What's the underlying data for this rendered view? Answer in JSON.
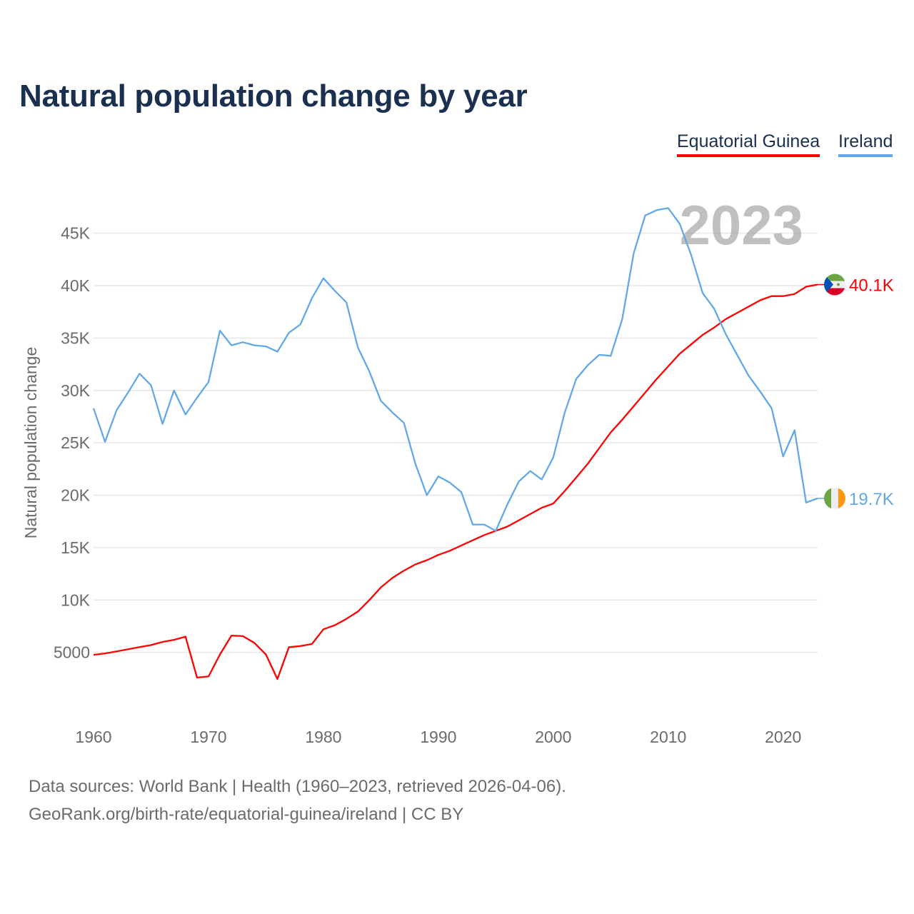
{
  "title": "Natural population change by year",
  "legend": [
    {
      "label": "Equatorial Guinea",
      "color": "#ff0000"
    },
    {
      "label": "Ireland",
      "color": "#62a8e8"
    }
  ],
  "year_display": "2023",
  "footer": {
    "line1": "Data sources: World Bank | Health (1960–2023, retrieved 2026-04-06).",
    "line2": "GeoRank.org/birth-rate/equatorial-guinea/ireland | CC BY"
  },
  "chart_data": {
    "type": "line",
    "title": "Natural population change by year",
    "xlabel": "",
    "ylabel": "Natural population change",
    "xlim": [
      1960,
      2023
    ],
    "ylim": [
      0,
      47.5
    ],
    "y_unit": "thousands",
    "grid": true,
    "legend_position": "top-right",
    "x_ticks": [
      "1960",
      "1970",
      "1980",
      "1990",
      "2000",
      "2010",
      "2020"
    ],
    "x_tick_values": [
      1960,
      1970,
      1980,
      1990,
      2000,
      2010,
      2020
    ],
    "y_ticks": [
      "5000",
      "10K",
      "15K",
      "20K",
      "25K",
      "30K",
      "35K",
      "40K",
      "45K"
    ],
    "y_tick_values": [
      5,
      10,
      15,
      20,
      25,
      30,
      35,
      40,
      45
    ],
    "x": [
      1960,
      1961,
      1962,
      1963,
      1964,
      1965,
      1966,
      1967,
      1968,
      1969,
      1970,
      1971,
      1972,
      1973,
      1974,
      1975,
      1976,
      1977,
      1978,
      1979,
      1980,
      1981,
      1982,
      1983,
      1984,
      1985,
      1986,
      1987,
      1988,
      1989,
      1990,
      1991,
      1992,
      1993,
      1994,
      1995,
      1996,
      1997,
      1998,
      1999,
      2000,
      2001,
      2002,
      2003,
      2004,
      2005,
      2006,
      2007,
      2008,
      2009,
      2010,
      2011,
      2012,
      2013,
      2014,
      2015,
      2016,
      2017,
      2018,
      2019,
      2020,
      2021,
      2022,
      2023
    ],
    "series": [
      {
        "name": "Equatorial Guinea",
        "color": "#ff0000",
        "end_label": "40.1K",
        "values": [
          4.77,
          4.9,
          5.1,
          5.3,
          5.5,
          5.7,
          6.0,
          6.2,
          6.5,
          2.6,
          2.7,
          4.8,
          6.6,
          6.55,
          5.9,
          4.8,
          2.45,
          5.5,
          5.6,
          5.8,
          7.2,
          7.6,
          8.2,
          8.9,
          10.0,
          11.2,
          12.1,
          12.8,
          13.4,
          13.8,
          14.3,
          14.7,
          15.2,
          15.7,
          16.2,
          16.6,
          17.0,
          17.6,
          18.2,
          18.8,
          19.2,
          20.4,
          21.7,
          23.0,
          24.5,
          26.0,
          27.2,
          28.5,
          29.8,
          31.1,
          32.3,
          33.5,
          34.4,
          35.3,
          36.0,
          36.8,
          37.4,
          38.0,
          38.6,
          39.0,
          39.0,
          39.2,
          39.9,
          40.1
        ]
      },
      {
        "name": "Ireland",
        "color": "#62a8e8",
        "end_label": "19.7K",
        "values": [
          28.3,
          25.1,
          28.1,
          29.8,
          31.6,
          30.5,
          26.8,
          30.0,
          27.7,
          29.3,
          30.8,
          35.7,
          34.3,
          34.6,
          34.3,
          34.2,
          33.7,
          35.5,
          36.3,
          38.8,
          40.7,
          39.5,
          38.4,
          34.1,
          31.8,
          29.0,
          27.9,
          26.9,
          23.0,
          20.0,
          21.8,
          21.2,
          20.3,
          17.2,
          17.2,
          16.6,
          19.1,
          21.3,
          22.3,
          21.5,
          23.6,
          27.9,
          31.1,
          32.4,
          33.4,
          33.3,
          36.8,
          43.1,
          46.7,
          47.2,
          47.4,
          45.9,
          42.9,
          39.3,
          37.8,
          35.4,
          33.4,
          31.4,
          29.9,
          28.3,
          23.7,
          26.2,
          19.3,
          19.7
        ]
      }
    ]
  }
}
